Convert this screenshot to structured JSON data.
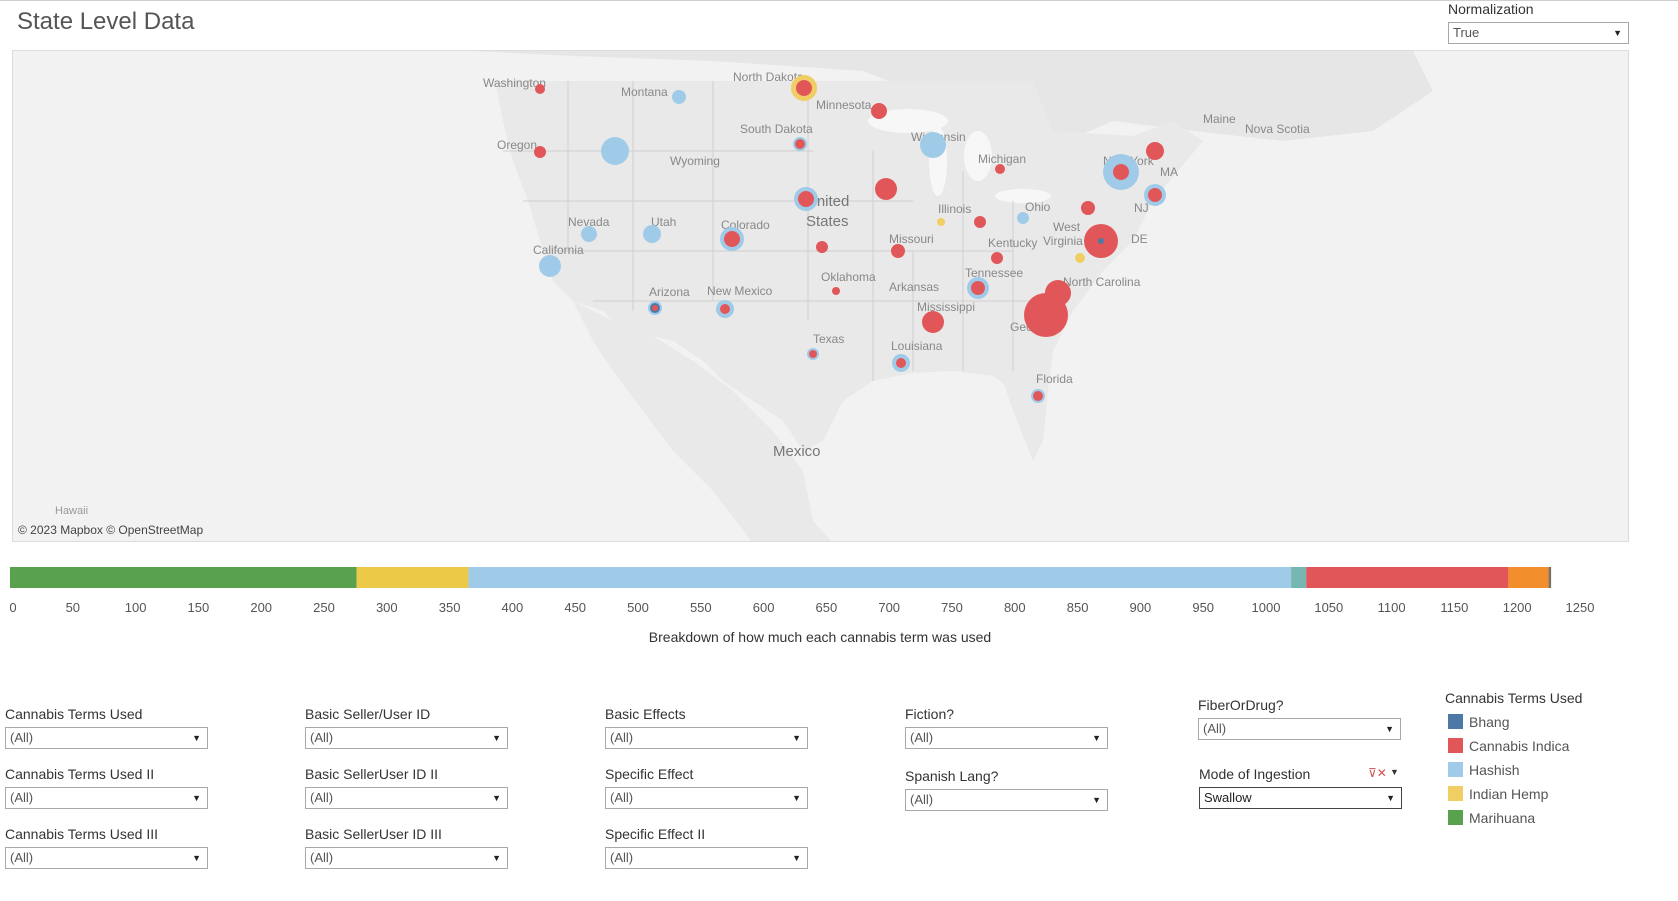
{
  "header": {
    "title": "State Level Data"
  },
  "normalization": {
    "label": "Normalization",
    "value": "True"
  },
  "map": {
    "attribution": "© 2023 Mapbox  © OpenStreetMap",
    "inset_label": "Hawaii",
    "place_labels": [
      "Washington",
      "Montana",
      "North Dakota",
      "Minnesota",
      "Maine",
      "Nova Scotia",
      "Oregon",
      "South Dakota",
      "Wisconsin",
      "Michigan",
      "Wyoming",
      "New York",
      "MA",
      "NJ",
      "United",
      "States",
      "Nevada",
      "Utah",
      "Colorado",
      "Illinois",
      "Ohio",
      "West",
      "Virginia",
      "Missouri",
      "Kentucky",
      "DE",
      "California",
      "Oklahoma",
      "Tennessee",
      "North Carolina",
      "Arizona",
      "New Mexico",
      "Arkansas",
      "Mississippi",
      "Georgia",
      "Texas",
      "Louisiana",
      "Florida",
      "Mexico"
    ],
    "legend_colors": {
      "Bhang": "#4e79a7",
      "Cannabis Indica": "#e15759",
      "Hashish": "#a0cbe8",
      "Indian Hemp": "#f1ce63",
      "Marihuana": "#59a14f"
    }
  },
  "breakdown": {
    "caption": "Breakdown of how much each cannabis term was used",
    "axis_ticks": [
      "0",
      "50",
      "100",
      "150",
      "200",
      "250",
      "300",
      "350",
      "400",
      "450",
      "500",
      "550",
      "600",
      "650",
      "700",
      "750",
      "800",
      "850",
      "900",
      "950",
      "1000",
      "1050",
      "1100",
      "1150",
      "1200",
      "1250"
    ],
    "axis_max": 1250,
    "segments": [
      {
        "name": "Marihuana",
        "start": 0,
        "end": 276,
        "color": "#59a14f"
      },
      {
        "name": "Indian Hemp",
        "start": 276,
        "end": 365,
        "color": "#edc948"
      },
      {
        "name": "Hashish",
        "start": 365,
        "end": 1020,
        "color": "#a0cbe8"
      },
      {
        "name": "Unlabeled teal",
        "start": 1020,
        "end": 1032,
        "color": "#76b7b2"
      },
      {
        "name": "Cannabis Indica",
        "start": 1032,
        "end": 1193,
        "color": "#e15759"
      },
      {
        "name": "Unlabeled orange",
        "start": 1193,
        "end": 1225,
        "color": "#f28e2b"
      },
      {
        "name": "Unlabeled grey",
        "start": 1225,
        "end": 1227,
        "color": "#79706e"
      }
    ]
  },
  "filters": {
    "col1": [
      {
        "label": "Cannabis Terms Used",
        "value": "(All)"
      },
      {
        "label": "Cannabis Terms Used II",
        "value": "(All)"
      },
      {
        "label": "Cannabis Terms Used III",
        "value": "(All)"
      }
    ],
    "col2": [
      {
        "label": "Basic Seller/User ID",
        "value": "(All)"
      },
      {
        "label": "Basic SellerUser ID II",
        "value": "(All)"
      },
      {
        "label": "Basic SellerUser ID III",
        "value": "(All)"
      }
    ],
    "col3": [
      {
        "label": "Basic Effects",
        "value": "(All)"
      },
      {
        "label": "Specific Effect",
        "value": "(All)"
      },
      {
        "label": "Specific Effect II",
        "value": "(All)"
      }
    ],
    "col4": [
      {
        "label": "Fiction?",
        "value": "(All)"
      },
      {
        "label": "Spanish Lang?",
        "value": "(All)"
      }
    ],
    "col5": [
      {
        "label": "FiberOrDrug?",
        "value": "(All)"
      },
      {
        "label": "Mode of Ingestion",
        "value": "Swallow"
      }
    ]
  },
  "legend": {
    "title": "Cannabis Terms Used",
    "items": [
      {
        "label": "Bhang",
        "color": "#4e79a7"
      },
      {
        "label": "Cannabis Indica",
        "color": "#e15759"
      },
      {
        "label": "Hashish",
        "color": "#a0cbe8"
      },
      {
        "label": "Indian Hemp",
        "color": "#f1ce63"
      },
      {
        "label": "Marihuana",
        "color": "#59a14f"
      }
    ]
  }
}
